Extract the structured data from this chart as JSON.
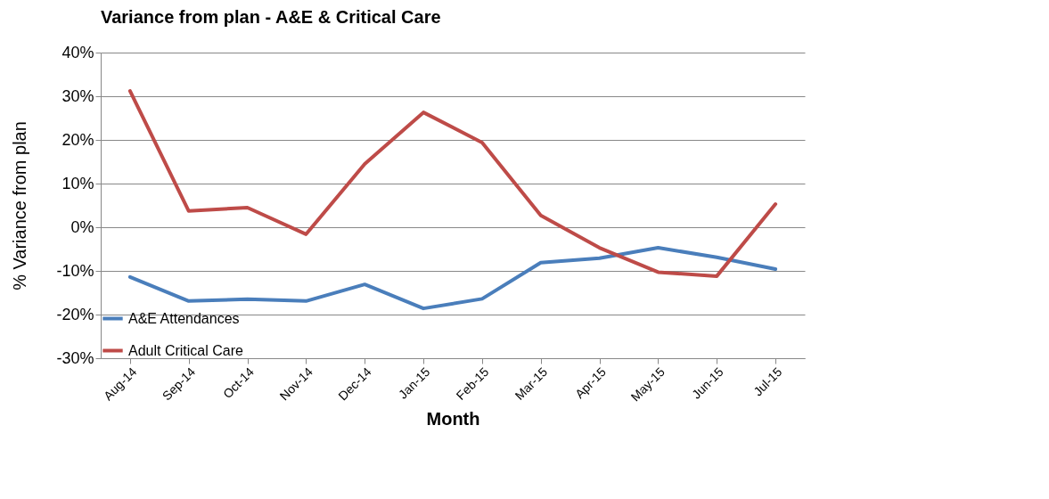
{
  "chart_data": {
    "type": "line",
    "title": "Variance from plan - A&E & Critical Care",
    "xlabel": "Month",
    "ylabel": "% Variance from plan",
    "categories": [
      "Aug-14",
      "Sep-14",
      "Oct-14",
      "Nov-14",
      "Dec-14",
      "Jan-15",
      "Feb-15",
      "Mar-15",
      "Apr-15",
      "May-15",
      "Jun-15",
      "Jul-15"
    ],
    "series": [
      {
        "name": "A&E Attendances",
        "color": "#4a7ebb",
        "values": [
          -11.4,
          -16.9,
          -16.5,
          -16.9,
          -13.1,
          -18.6,
          -16.4,
          -8.1,
          -7.1,
          -4.7,
          -6.9,
          -9.6
        ]
      },
      {
        "name": "Adult Critical Care",
        "color": "#be4b48",
        "values": [
          31.2,
          3.7,
          4.5,
          -1.6,
          14.5,
          26.3,
          19.4,
          2.7,
          -4.7,
          -10.3,
          -11.2,
          5.3
        ]
      }
    ],
    "ylim": [
      -30,
      40
    ],
    "yticks": [
      {
        "value": -30,
        "label": "-30%"
      },
      {
        "value": -20,
        "label": "-20%"
      },
      {
        "value": -10,
        "label": "-10%"
      },
      {
        "value": 0,
        "label": "0%"
      },
      {
        "value": 10,
        "label": "10%"
      },
      {
        "value": 20,
        "label": "20%"
      },
      {
        "value": 30,
        "label": "30%"
      },
      {
        "value": 40,
        "label": "40%"
      }
    ],
    "grid": "y",
    "legend": "bottom left",
    "marker": "none",
    "line_style": "solid"
  }
}
